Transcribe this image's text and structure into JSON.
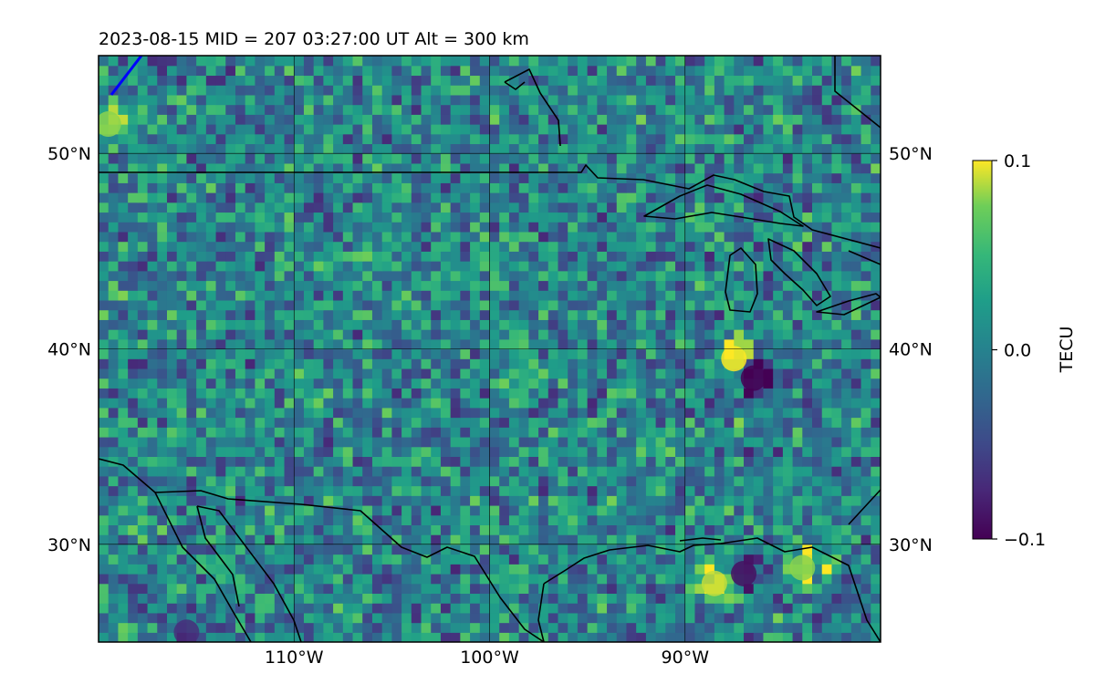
{
  "title": "2023-08-15  MID = 207    03:27:00  UT  Alt = 300 km",
  "map": {
    "projection": "PlateCarree",
    "lon_range": [
      -120,
      -80
    ],
    "lat_range": [
      25,
      55
    ],
    "gridlines": true,
    "lon_ticks": [
      {
        "lon": -110,
        "label": "110°W"
      },
      {
        "lon": -100,
        "label": "100°W"
      },
      {
        "lon": -90,
        "label": "90°W"
      }
    ],
    "lat_ticks": [
      {
        "lat": 30,
        "label": "30°N"
      },
      {
        "lat": 40,
        "label": "40°N"
      },
      {
        "lat": 50,
        "label": "50°N"
      }
    ],
    "coastline_color": "#000000",
    "satellite_track_color": "#0000ff"
  },
  "colorbar": {
    "label": "TECU",
    "colormap": "viridis",
    "vmin": -0.1,
    "vmax": 0.1,
    "ticks": [
      {
        "value": 0.1,
        "label": "0.1"
      },
      {
        "value": 0.0,
        "label": "0.0"
      },
      {
        "value": -0.1,
        "label": "−0.1"
      }
    ]
  },
  "features": [
    {
      "name": "positive-anomaly-west-edge",
      "lon": -119.5,
      "lat": 51.5,
      "value": 0.08
    },
    {
      "name": "positive-anomaly-great-lakes-south",
      "lon": -87.5,
      "lat": 39.5,
      "value": 0.1
    },
    {
      "name": "negative-anomaly-ohio-valley",
      "lon": -86.5,
      "lat": 38.5,
      "value": -0.1
    },
    {
      "name": "negative-anomaly-southwest",
      "lon": -115.5,
      "lat": 25.5,
      "value": -0.07
    },
    {
      "name": "positive-anomaly-gulf-coast",
      "lon": -88.5,
      "lat": 28.0,
      "value": 0.09
    },
    {
      "name": "negative-anomaly-gulf-coast",
      "lon": -87.0,
      "lat": 28.5,
      "value": -0.09
    },
    {
      "name": "positive-anomaly-florida-panhandle",
      "lon": -84.0,
      "lat": 28.8,
      "value": 0.08
    }
  ]
}
